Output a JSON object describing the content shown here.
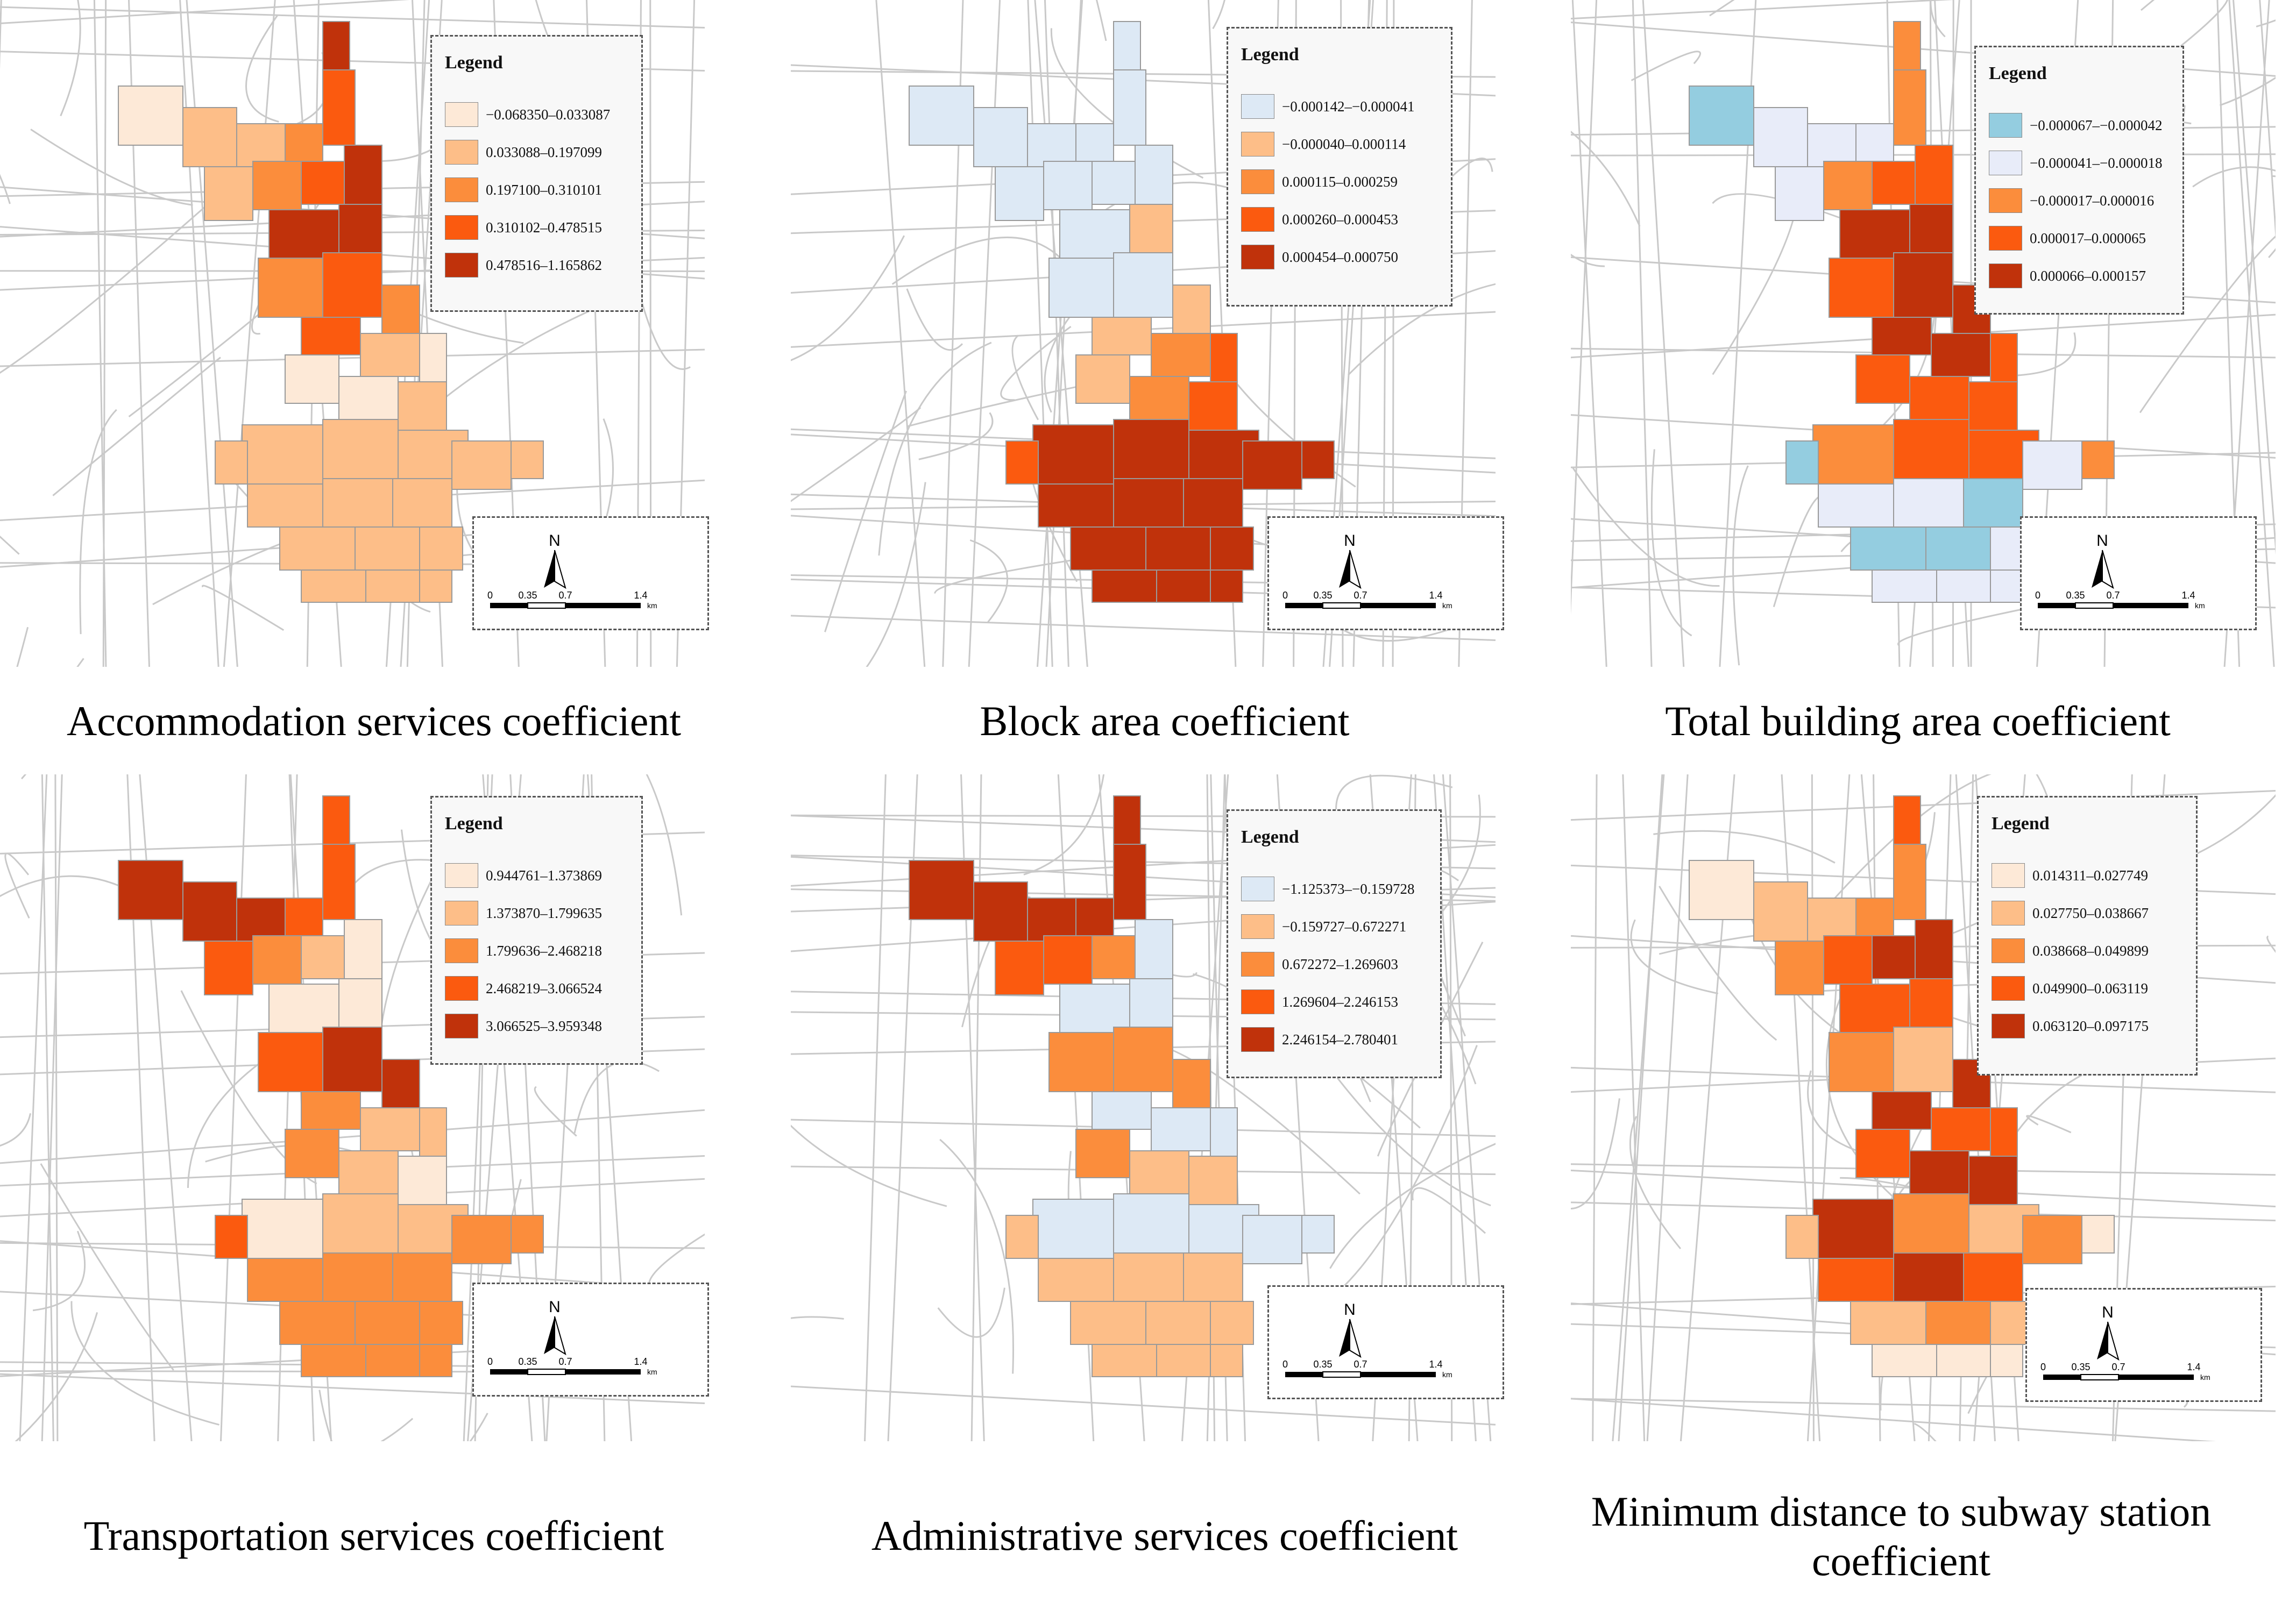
{
  "legend_title": "Legend",
  "colors": {
    "orange": [
      "#fde9d7",
      "#fdbe88",
      "#fb8d3c",
      "#fb5a0f",
      "#c0320b"
    ],
    "diverging_blue": [
      "#dde9f5",
      "#fdbe88",
      "#fb8d3c",
      "#fb5a0f",
      "#c0320b"
    ],
    "two_blue": [
      "#94cde0",
      "#e8ecf9",
      "#fb8d3c",
      "#fb5a0f",
      "#c0320b"
    ]
  },
  "scale_bar": {
    "ticks": [
      "0",
      "0.35",
      "0.7",
      "1.4"
    ],
    "unit": "km",
    "north": "N"
  },
  "panels": [
    {
      "caption": "Accommodation services coefficient",
      "classes": [
        {
          "range": "−0.068350–0.033087",
          "color": "#fde9d7"
        },
        {
          "range": "0.033088–0.197099",
          "color": "#fdbe88"
        },
        {
          "range": "0.197100–0.310101",
          "color": "#fb8d3c"
        },
        {
          "range": "0.310102–0.478515",
          "color": "#fb5a0f"
        },
        {
          "range": "0.478516–1.165862",
          "color": "#c0320b"
        }
      ],
      "blocks": [
        0,
        1,
        1,
        2,
        3,
        4,
        1,
        2,
        3,
        4,
        4,
        4,
        2,
        3,
        2,
        3,
        1,
        0,
        0,
        0,
        1,
        1,
        1,
        1,
        1,
        1,
        1,
        1,
        1,
        1,
        1,
        1,
        1,
        1,
        1,
        1
      ]
    },
    {
      "caption": "Block area coefficient",
      "classes": [
        {
          "range": "−0.000142–−0.000041",
          "color": "#dde9f5"
        },
        {
          "range": "−0.000040–0.000114",
          "color": "#fdbe88"
        },
        {
          "range": "0.000115–0.000259",
          "color": "#fb8d3c"
        },
        {
          "range": "0.000260–0.000453",
          "color": "#fb5a0f"
        },
        {
          "range": "0.000454–0.000750",
          "color": "#c0320b"
        }
      ],
      "blocks": [
        0,
        0,
        0,
        0,
        0,
        0,
        0,
        0,
        0,
        0,
        0,
        1,
        0,
        0,
        1,
        1,
        2,
        3,
        1,
        2,
        3,
        4,
        4,
        4,
        3,
        4,
        4,
        4,
        4,
        4,
        4,
        4,
        4,
        4,
        4,
        4
      ]
    },
    {
      "caption": "Total building area coefficient",
      "classes": [
        {
          "range": "−0.000067–−0.000042",
          "color": "#94cde0"
        },
        {
          "range": "−0.000041–−0.000018",
          "color": "#e8ecf9"
        },
        {
          "range": "−0.000017–0.000016",
          "color": "#fb8d3c"
        },
        {
          "range": "0.000017–0.000065",
          "color": "#fb5a0f"
        },
        {
          "range": "0.000066–0.000157",
          "color": "#c0320b"
        }
      ],
      "blocks": [
        0,
        1,
        1,
        1,
        2,
        2,
        1,
        2,
        3,
        3,
        4,
        4,
        3,
        4,
        4,
        4,
        4,
        3,
        3,
        3,
        3,
        2,
        3,
        3,
        0,
        1,
        1,
        0,
        1,
        2,
        0,
        0,
        1,
        1,
        1,
        1
      ]
    },
    {
      "caption": "Transportation services coefficient",
      "classes": [
        {
          "range": "0.944761–1.373869",
          "color": "#fde9d7"
        },
        {
          "range": "1.373870–1.799635",
          "color": "#fdbe88"
        },
        {
          "range": "1.799636–2.468218",
          "color": "#fb8d3c"
        },
        {
          "range": "2.468219–3.066524",
          "color": "#fb5a0f"
        },
        {
          "range": "3.066525–3.959348",
          "color": "#c0320b"
        }
      ],
      "blocks": [
        4,
        4,
        4,
        3,
        3,
        3,
        3,
        2,
        1,
        0,
        0,
        0,
        3,
        4,
        4,
        2,
        1,
        1,
        2,
        1,
        0,
        0,
        1,
        1,
        3,
        2,
        2,
        2,
        2,
        2,
        2,
        2,
        2,
        2,
        2,
        2
      ]
    },
    {
      "caption": "Administrative services coefficient",
      "classes": [
        {
          "range": "−1.125373–−0.159728",
          "color": "#dde9f5"
        },
        {
          "range": "−0.159727–0.672271",
          "color": "#fdbe88"
        },
        {
          "range": "0.672272–1.269603",
          "color": "#fb8d3c"
        },
        {
          "range": "1.269604–2.246153",
          "color": "#fb5a0f"
        },
        {
          "range": "2.246154–2.780401",
          "color": "#c0320b"
        }
      ],
      "blocks": [
        4,
        4,
        4,
        4,
        4,
        4,
        3,
        3,
        2,
        0,
        0,
        0,
        2,
        2,
        2,
        0,
        0,
        0,
        2,
        1,
        1,
        0,
        0,
        0,
        1,
        1,
        1,
        1,
        0,
        0,
        1,
        1,
        1,
        1,
        1,
        1
      ]
    },
    {
      "caption": "Minimum distance to subway station coefficient",
      "classes": [
        {
          "range": "0.014311–0.027749",
          "color": "#fde9d7"
        },
        {
          "range": "0.027750–0.038667",
          "color": "#fdbe88"
        },
        {
          "range": "0.038668–0.049899",
          "color": "#fb8d3c"
        },
        {
          "range": "0.049900–0.063119",
          "color": "#fb5a0f"
        },
        {
          "range": "0.063120–0.097175",
          "color": "#c0320b"
        }
      ],
      "blocks": [
        0,
        1,
        1,
        2,
        2,
        3,
        2,
        3,
        4,
        4,
        3,
        3,
        2,
        1,
        4,
        4,
        3,
        3,
        3,
        4,
        4,
        4,
        2,
        1,
        1,
        3,
        4,
        3,
        2,
        0,
        1,
        2,
        1,
        0,
        0,
        0
      ]
    }
  ]
}
